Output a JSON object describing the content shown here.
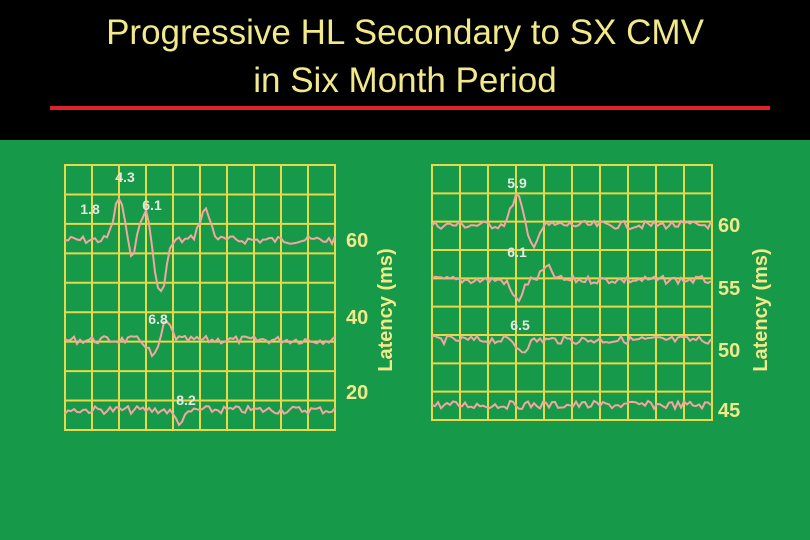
{
  "title": [
    "Progressive HL Secondary to SX CMV",
    "in Six Month Period"
  ],
  "panels": [
    {
      "axis_label": "Latency (ms)",
      "right_labels": [
        "60",
        "40",
        "20"
      ],
      "peak_labels": [
        "4.3",
        "1.8",
        "6.1",
        "6.8",
        "8.2"
      ]
    },
    {
      "axis_label": "Latency (ms)",
      "right_labels": [
        "60",
        "55",
        "50",
        "45"
      ],
      "peak_labels": [
        "5.9",
        "6.1",
        "6.5"
      ]
    }
  ]
}
